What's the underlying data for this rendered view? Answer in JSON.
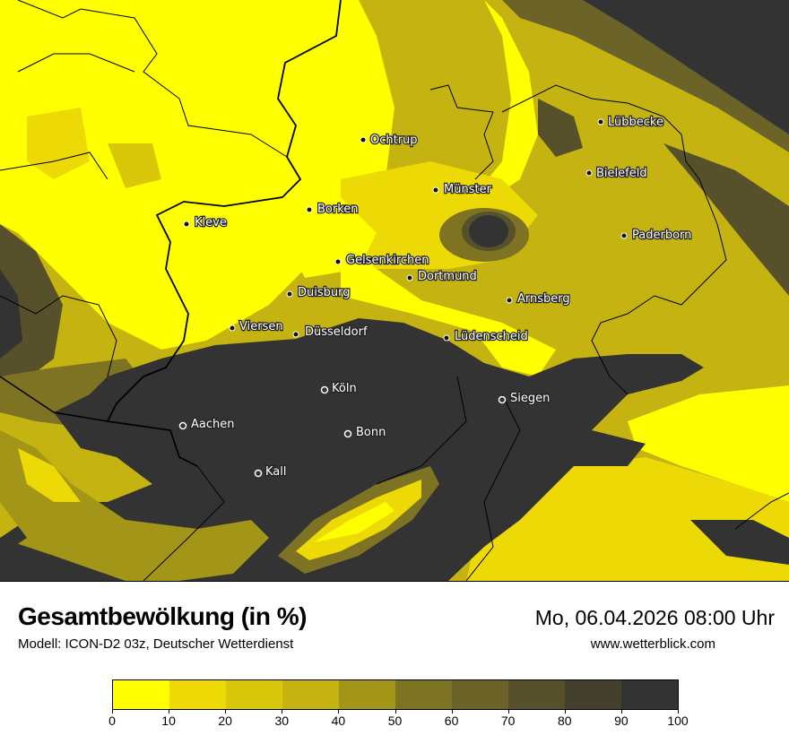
{
  "header": {
    "title": "Gesamtbewölkung (in %)",
    "subtitle": "Modell: ICON-D2 03z, Deutscher Wetterdienst",
    "datetime": "Mo, 06.04.2026 08:00 Uhr",
    "website": "www.wetterblick.com"
  },
  "cities": [
    {
      "name": "Ochtrup"
    },
    {
      "name": "Lübbecke"
    },
    {
      "name": "Bielefeld"
    },
    {
      "name": "Münster"
    },
    {
      "name": "Borken"
    },
    {
      "name": "Kleve"
    },
    {
      "name": "Paderborn"
    },
    {
      "name": "Gelsenkirchen"
    },
    {
      "name": "Dortmund"
    },
    {
      "name": "Duisburg"
    },
    {
      "name": "Arnsberg"
    },
    {
      "name": "Viersen"
    },
    {
      "name": "Düsseldorf"
    },
    {
      "name": "Lüdenscheid"
    },
    {
      "name": "Köln"
    },
    {
      "name": "Siegen"
    },
    {
      "name": "Aachen"
    },
    {
      "name": "Bonn"
    },
    {
      "name": "Kall"
    }
  ],
  "legend": {
    "unit": "%",
    "ticks": [
      "0",
      "10",
      "20",
      "30",
      "40",
      "50",
      "60",
      "70",
      "80",
      "90",
      "100"
    ],
    "colors": [
      "#ffff00",
      "#ecd905",
      "#d9c709",
      "#c4b310",
      "#a39518",
      "#7d7322",
      "#6b6328",
      "#56512a",
      "#44402e",
      "#333333"
    ]
  }
}
